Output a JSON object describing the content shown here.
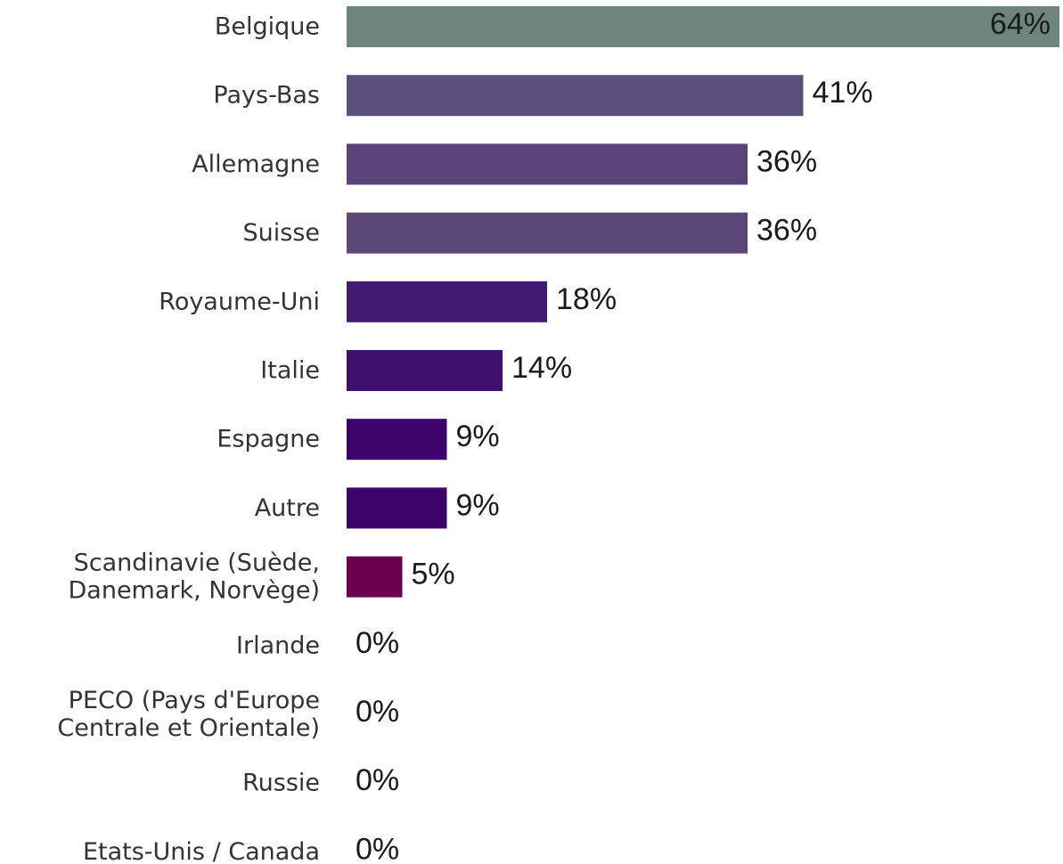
{
  "chart_data": {
    "type": "bar",
    "orientation": "horizontal",
    "title": "",
    "xlabel": "",
    "ylabel": "",
    "xlim": [
      0,
      64
    ],
    "grid": false,
    "legend": "none",
    "categories": [
      "Belgique",
      "Pays-Bas",
      "Allemagne",
      "Suisse",
      "Royaume-Uni",
      "Italie",
      "Espagne",
      "Autre",
      "Scandinavie (Suède, Danemark, Norvège)",
      "Irlande",
      "PECO (Pays d'Europe Centrale et Orientale)",
      "Russie",
      "Etats-Unis / Canada"
    ],
    "category_lines": [
      [
        "Belgique"
      ],
      [
        "Pays-Bas"
      ],
      [
        "Allemagne"
      ],
      [
        "Suisse"
      ],
      [
        "Royaume-Uni"
      ],
      [
        "Italie"
      ],
      [
        "Espagne"
      ],
      [
        "Autre"
      ],
      [
        "Scandinavie (Suède,",
        "Danemark, Norvège)"
      ],
      [
        "Irlande"
      ],
      [
        "PECO (Pays d'Europe",
        "Centrale et Orientale)"
      ],
      [
        "Russie"
      ],
      [
        "Etats-Unis / Canada"
      ]
    ],
    "values": [
      64,
      41,
      36,
      36,
      18,
      14,
      9,
      9,
      5,
      0,
      0,
      0,
      0
    ],
    "value_labels": [
      "64%",
      "41%",
      "36%",
      "36%",
      "18%",
      "14%",
      "9%",
      "9%",
      "5%",
      "0%",
      "0%",
      "0%",
      "0%"
    ],
    "colors": [
      "#6e857c",
      "#5d4f7b",
      "#5a4378",
      "#5c4779",
      "#431b72",
      "#3f0f6e",
      "#3e046b",
      "#3e036b",
      "#6b0050",
      "#6b0050",
      "#6b0050",
      "#6b0050",
      "#6b0050"
    ]
  }
}
